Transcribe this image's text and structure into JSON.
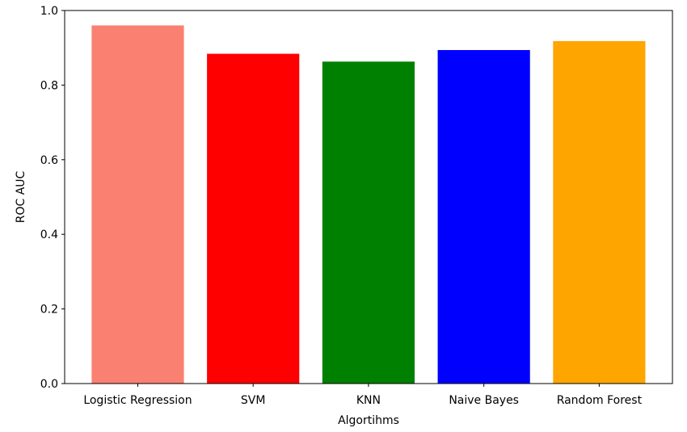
{
  "chart_data": {
    "type": "bar",
    "title": "",
    "xlabel": "Algortihms",
    "ylabel": "ROC AUC",
    "categories": [
      "Logistic Regression",
      "SVM",
      "KNN",
      "Naive Bayes",
      "Random Forest"
    ],
    "values": [
      0.96,
      0.884,
      0.863,
      0.894,
      0.918
    ],
    "colors": [
      "#fa8072",
      "#ff0000",
      "#008000",
      "#0000ff",
      "#ffa500"
    ],
    "ylim": [
      0,
      1.0
    ],
    "yticks": [
      "0.0",
      "0.2",
      "0.4",
      "0.6",
      "0.8",
      "1.0"
    ],
    "grid": false,
    "legend": null
  }
}
